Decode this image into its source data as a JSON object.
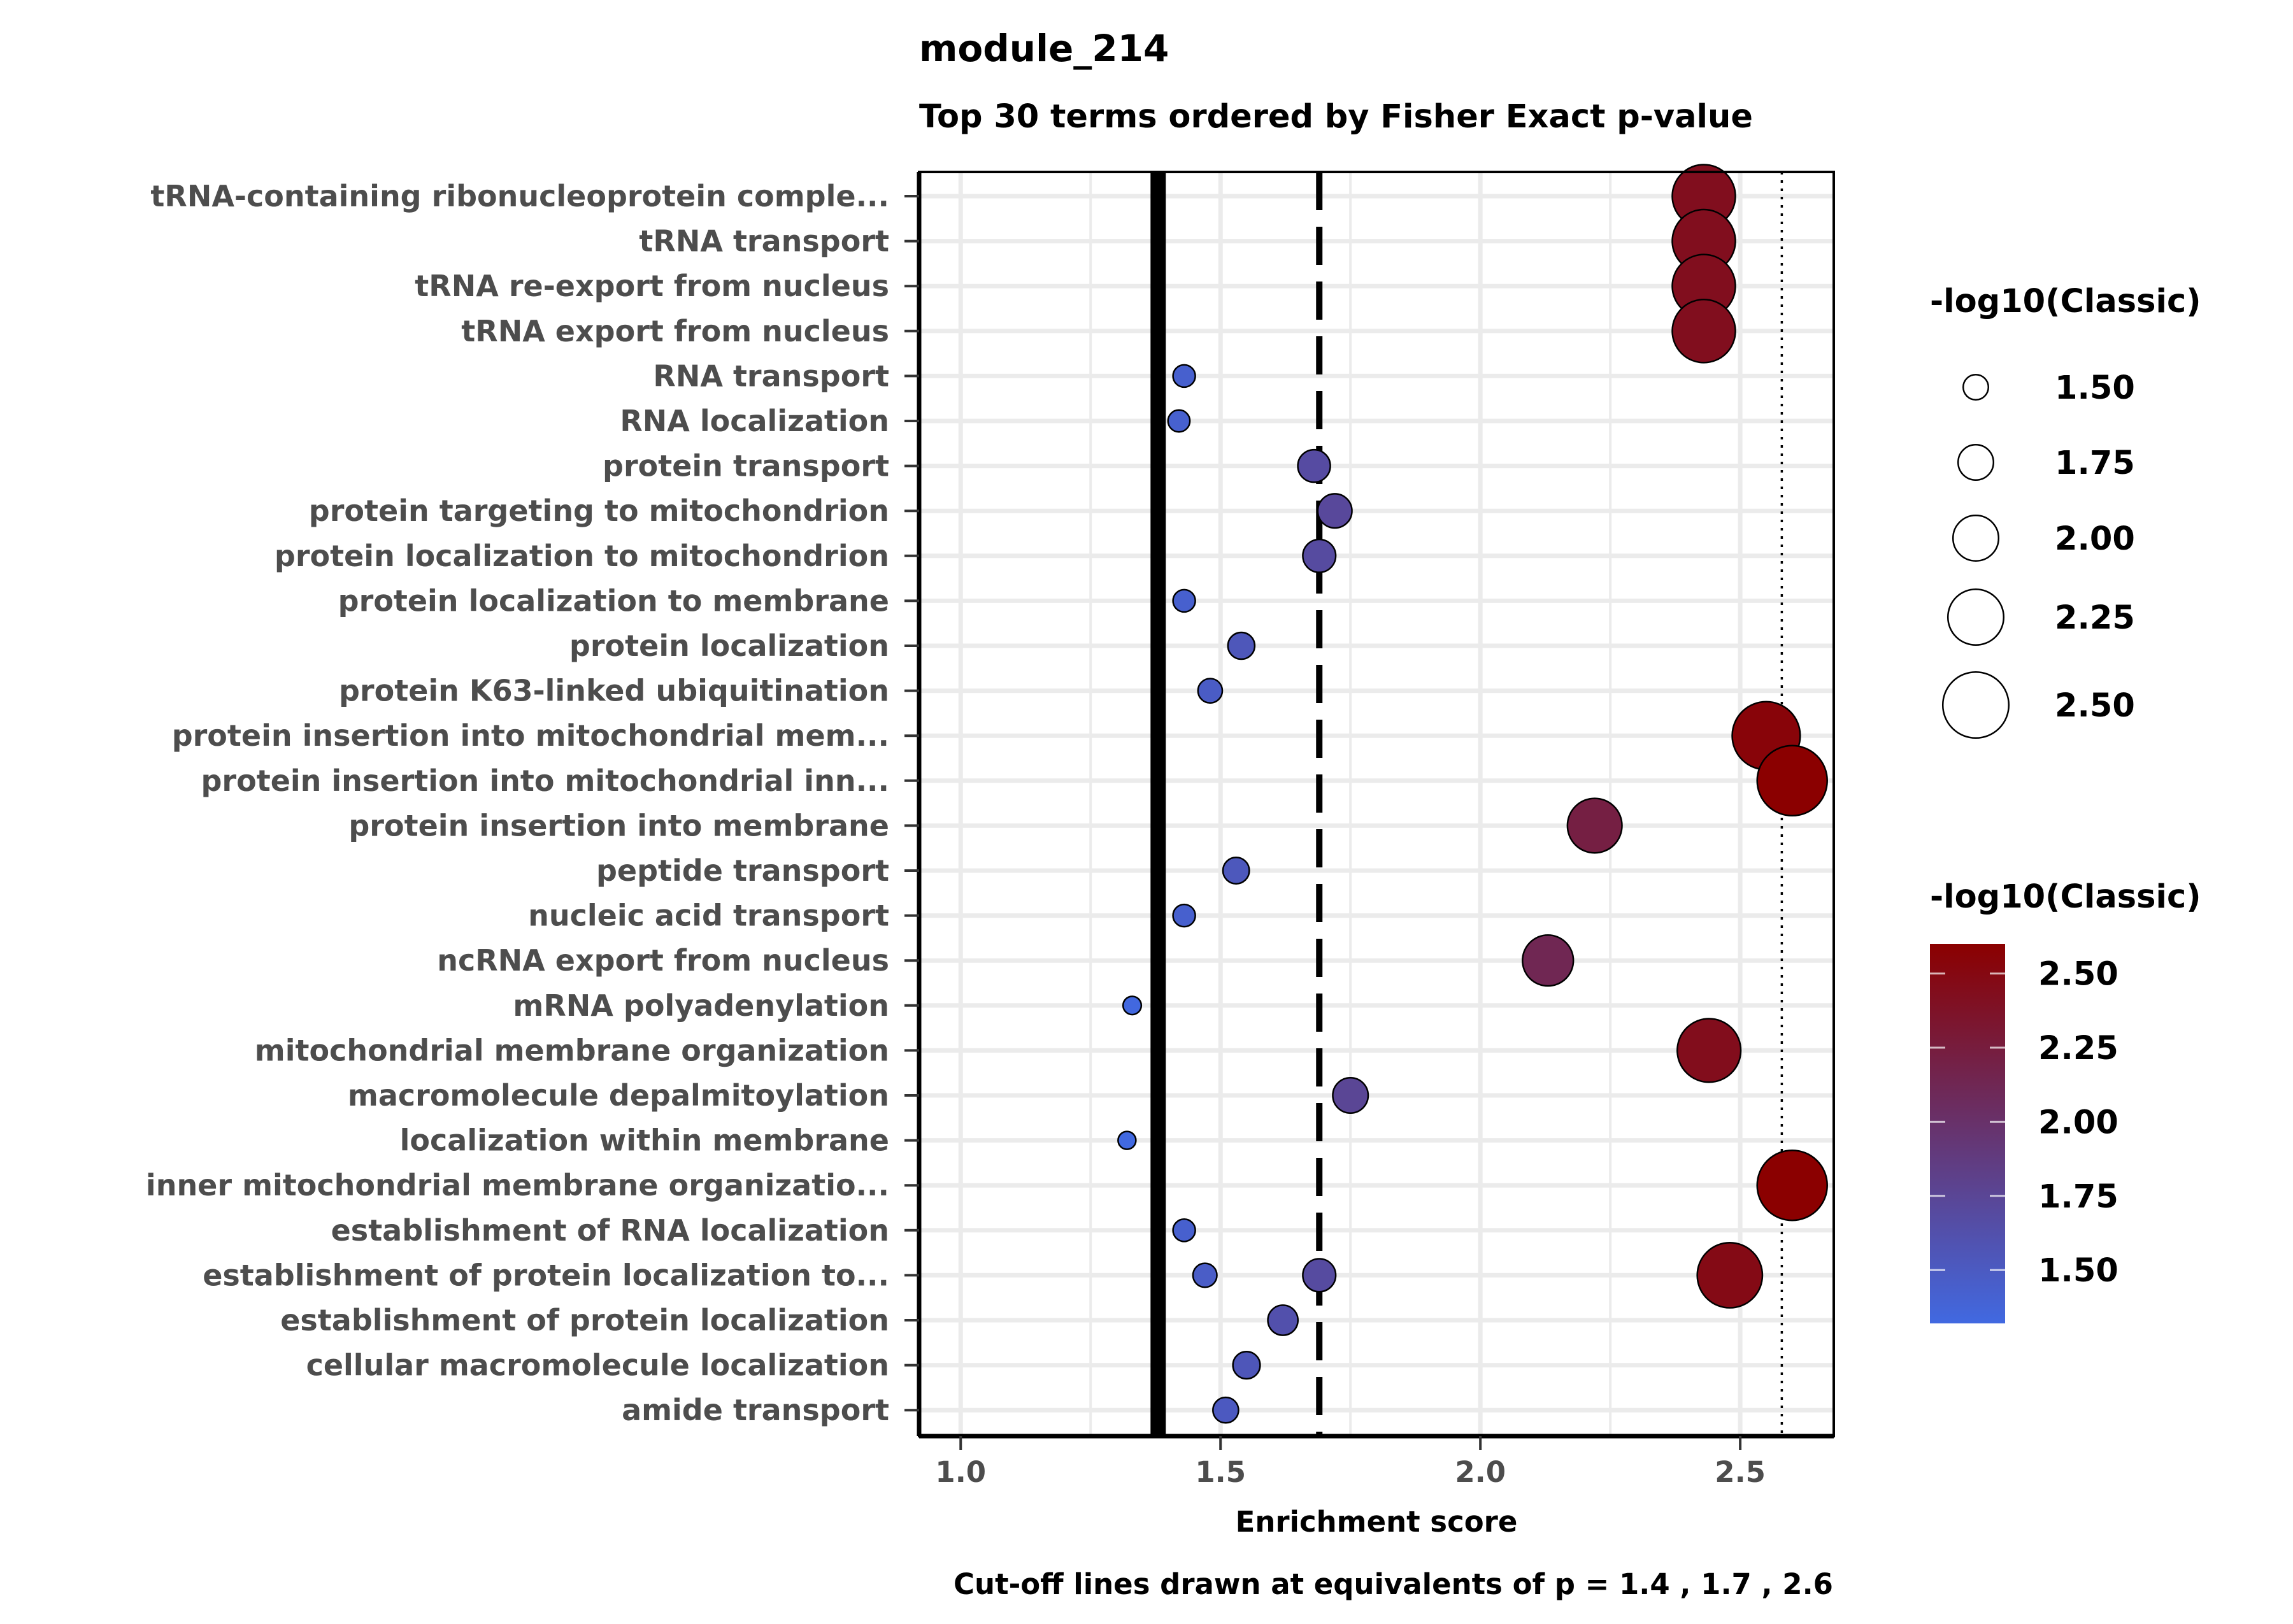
{
  "chart_data": {
    "type": "scatter",
    "title": "module_214",
    "subtitle": "Top 30 terms ordered by Fisher Exact p-value",
    "xlabel": "Enrichment score",
    "caption": "Cut-off lines drawn at equivalents of p = 1.4 , 1.7 , 2.6",
    "xlim": [
      0.92,
      2.68
    ],
    "xticks": [
      1.0,
      1.5,
      2.0,
      2.5
    ],
    "xtick_labels": [
      "1.0",
      "1.5",
      "2.0",
      "2.5"
    ],
    "grid": true,
    "cutoff_lines": [
      {
        "x": 1.38,
        "style": "solid"
      },
      {
        "x": 1.69,
        "style": "dashed"
      },
      {
        "x": 2.58,
        "style": "dotted"
      }
    ],
    "categories": [
      "tRNA-containing ribonucleoprotein comple...",
      "tRNA transport",
      "tRNA re-export from nucleus",
      "tRNA export from nucleus",
      "RNA transport",
      "RNA localization",
      "protein transport",
      "protein targeting to mitochondrion",
      "protein localization to mitochondrion",
      "protein localization to membrane",
      "protein localization",
      "protein K63-linked ubiquitination",
      "protein insertion into mitochondrial mem...",
      "protein insertion into mitochondrial inn...",
      "protein insertion into membrane",
      "peptide transport",
      "nucleic acid transport",
      "ncRNA export from nucleus",
      "mRNA polyadenylation",
      "mitochondrial membrane organization",
      "macromolecule depalmitoylation",
      "localization within membrane",
      "inner mitochondrial membrane organizatio...",
      "establishment of RNA localization",
      "establishment of protein localization to...",
      "establishment of protein localization",
      "cellular macromolecule localization",
      "amide transport"
    ],
    "points": [
      {
        "term": "tRNA-containing ribonucleoprotein comple...",
        "x": 2.43,
        "classic": 2.43
      },
      {
        "term": "tRNA transport",
        "x": 2.43,
        "classic": 2.43
      },
      {
        "term": "tRNA re-export from nucleus",
        "x": 2.43,
        "classic": 2.43
      },
      {
        "term": "tRNA export from nucleus",
        "x": 2.43,
        "classic": 2.43
      },
      {
        "term": "RNA transport",
        "x": 1.43,
        "classic": 1.43
      },
      {
        "term": "RNA localization",
        "x": 1.42,
        "classic": 1.42
      },
      {
        "term": "protein transport",
        "x": 1.68,
        "classic": 1.68
      },
      {
        "term": "protein targeting to mitochondrion",
        "x": 1.72,
        "classic": 1.72
      },
      {
        "term": "protein localization to mitochondrion",
        "x": 1.69,
        "classic": 1.69
      },
      {
        "term": "protein localization to membrane",
        "x": 1.43,
        "classic": 1.43
      },
      {
        "term": "protein localization",
        "x": 1.54,
        "classic": 1.54
      },
      {
        "term": "protein K63-linked ubiquitination",
        "x": 1.48,
        "classic": 1.48
      },
      {
        "term": "protein insertion into mitochondrial mem...",
        "x": 2.55,
        "classic": 2.55
      },
      {
        "term": "protein insertion into mitochondrial inn...",
        "x": 2.6,
        "classic": 2.6
      },
      {
        "term": "protein insertion into membrane",
        "x": 2.22,
        "classic": 2.22
      },
      {
        "term": "peptide transport",
        "x": 1.53,
        "classic": 1.53
      },
      {
        "term": "nucleic acid transport",
        "x": 1.43,
        "classic": 1.43
      },
      {
        "term": "ncRNA export from nucleus",
        "x": 2.13,
        "classic": 2.13
      },
      {
        "term": "mRNA polyadenylation",
        "x": 1.33,
        "classic": 1.33
      },
      {
        "term": "mitochondrial membrane organization",
        "x": 2.44,
        "classic": 2.44
      },
      {
        "term": "macromolecule depalmitoylation",
        "x": 1.75,
        "classic": 1.75
      },
      {
        "term": "localization within membrane",
        "x": 1.32,
        "classic": 1.32
      },
      {
        "term": "inner mitochondrial membrane organizatio...",
        "x": 2.6,
        "classic": 2.6
      },
      {
        "term": "establishment of RNA localization",
        "x": 1.43,
        "classic": 1.43
      },
      {
        "term": "establishment of protein localization to...",
        "x": 1.47,
        "classic": 1.47
      },
      {
        "term": "establishment of protein localization to...",
        "x": 1.69,
        "classic": 1.69
      },
      {
        "term": "establishment of protein localization to...",
        "x": 2.48,
        "classic": 2.48
      },
      {
        "term": "establishment of protein localization",
        "x": 1.62,
        "classic": 1.62
      },
      {
        "term": "cellular macromolecule localization",
        "x": 1.55,
        "classic": 1.55
      },
      {
        "term": "amide transport",
        "x": 1.51,
        "classic": 1.51
      }
    ],
    "legend_size": {
      "title": "-log10(Classic)",
      "values": [
        1.5,
        1.75,
        2.0,
        2.25,
        2.5
      ],
      "labels": [
        "1.50",
        "1.75",
        "2.00",
        "2.25",
        "2.50"
      ]
    },
    "legend_color": {
      "title": "-log10(Classic)",
      "range": [
        1.32,
        2.6
      ],
      "low_color": "#4169E1",
      "high_color": "#8B0000",
      "ticks": [
        1.5,
        1.75,
        2.0,
        2.25,
        2.5
      ],
      "labels": [
        "1.50",
        "1.75",
        "2.00",
        "2.25",
        "2.50"
      ]
    }
  }
}
